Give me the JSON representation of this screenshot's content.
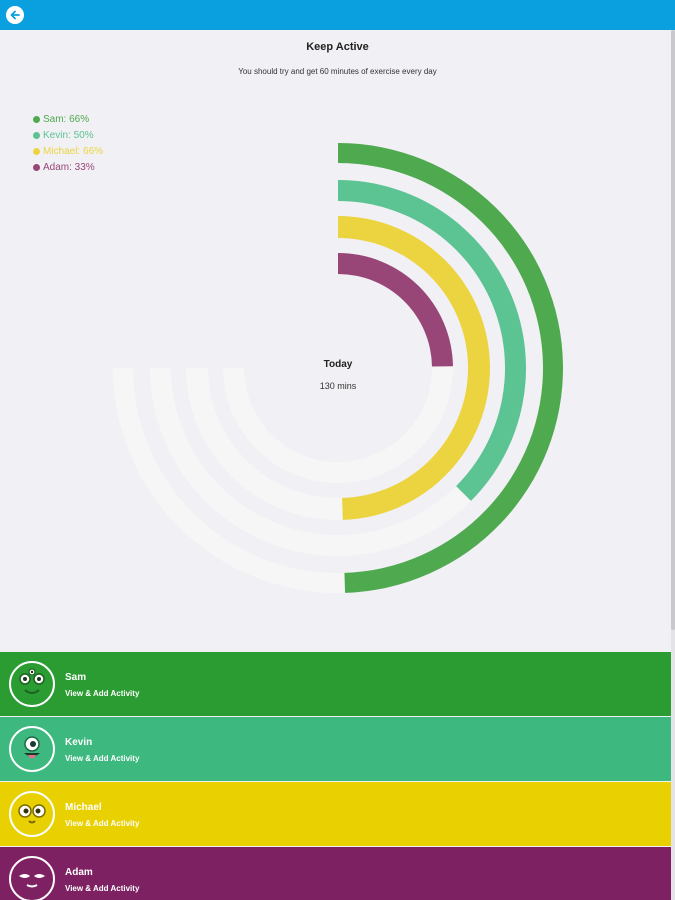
{
  "header": {
    "back_icon": "arrow-left-icon"
  },
  "page": {
    "title": "Keep Active",
    "subtitle": "You should try and get 60 minutes of exercise every day",
    "center_label": "Today",
    "center_value": "130 mins"
  },
  "chart_data": {
    "type": "radial-bar",
    "series": [
      {
        "name": "Sam",
        "label": "Sam: 66%",
        "percent": 66,
        "color": "#4ea94f"
      },
      {
        "name": "Kevin",
        "label": "Kevin: 50%",
        "percent": 50,
        "color": "#5cc393"
      },
      {
        "name": "Michael",
        "label": "Michael: 66%",
        "percent": 66,
        "color": "#ecd440"
      },
      {
        "name": "Adam",
        "label": "Adam: 33%",
        "percent": 33,
        "color": "#984578"
      }
    ],
    "track_color": "#f6f6f6",
    "legend_position": "top-left"
  },
  "people": [
    {
      "name": "Sam",
      "action": "View & Add Activity",
      "color": "#2a9c31",
      "icon": "three-eyed-monster-icon"
    },
    {
      "name": "Kevin",
      "action": "View & Add Activity",
      "color": "#3db87f",
      "icon": "one-eyed-monster-icon"
    },
    {
      "name": "Michael",
      "action": "View & Add Activity",
      "color": "#e8d001",
      "icon": "round-eyed-monster-icon"
    },
    {
      "name": "Adam",
      "action": "View & Add Activity",
      "color": "#7e2162",
      "icon": "sleepy-monster-icon"
    }
  ]
}
